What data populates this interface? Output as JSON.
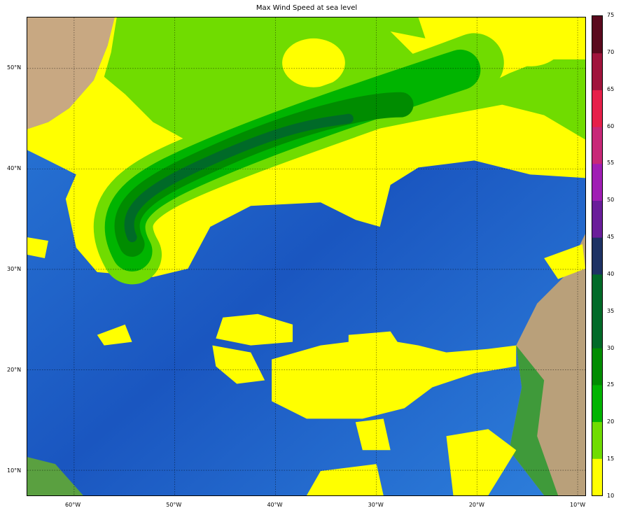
{
  "title": "Max Wind Speed at sea level",
  "map": {
    "lon_range": [
      -64.65,
      -9.24
    ],
    "lat_range": [
      7.5,
      55.07
    ],
    "gridlines": true,
    "lon_ticks": [
      {
        "value": -60,
        "label": "60°W"
      },
      {
        "value": -50,
        "label": "50°W"
      },
      {
        "value": -40,
        "label": "40°W"
      },
      {
        "value": -30,
        "label": "30°W"
      },
      {
        "value": -20,
        "label": "20°W"
      },
      {
        "value": -10,
        "label": "10°W"
      }
    ],
    "lat_ticks": [
      {
        "value": 50,
        "label": "50°N"
      },
      {
        "value": 40,
        "label": "40°N"
      },
      {
        "value": 30,
        "label": "30°N"
      },
      {
        "value": 20,
        "label": "20°N"
      },
      {
        "value": 10,
        "label": "10°N"
      }
    ],
    "basemap": "shaded relief"
  },
  "colorbar": {
    "levels": [
      10,
      15,
      20,
      25,
      30,
      35,
      40,
      45,
      50,
      55,
      60,
      65,
      70,
      75
    ],
    "labels": [
      "10",
      "15",
      "20",
      "25",
      "30",
      "35",
      "40",
      "45",
      "50",
      "55",
      "60",
      "65",
      "70",
      "75"
    ],
    "colors": [
      "#ffff00",
      "#70dc00",
      "#00b400",
      "#008c00",
      "#006a28",
      "#006a28",
      "#1e3264",
      "#6a1e9a",
      "#a01eb4",
      "#c82878",
      "#e6204a",
      "#a0143c",
      "#5a0a1e"
    ]
  }
}
